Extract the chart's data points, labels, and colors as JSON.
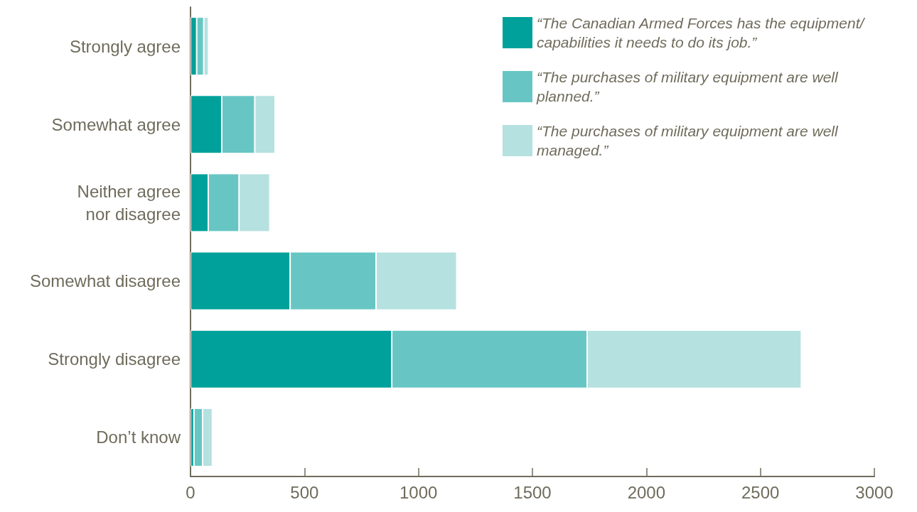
{
  "chart_data": {
    "type": "bar",
    "orientation": "horizontal",
    "stacked": true,
    "categories": [
      "Strongly agree",
      "Somewhat agree",
      "Neither agree\nnor disagree",
      "Somewhat disagree",
      "Strongly disagree",
      "Don’t know"
    ],
    "series": [
      {
        "name": "“The Canadian Armed Forces has the equipment/ capabilities it needs to do its job.”",
        "color": "#00a19a",
        "values": [
          27,
          137,
          78,
          437,
          883,
          15
        ]
      },
      {
        "name": "“The purchases of military equipment are well planned.”",
        "color": "#67c6c3",
        "values": [
          31,
          145,
          135,
          377,
          857,
          38
        ]
      },
      {
        "name": "“The purchases of military equipment are well managed.”",
        "color": "#b5e1e0",
        "values": [
          21,
          89,
          135,
          354,
          940,
          43
        ]
      }
    ],
    "xlim": [
      0,
      3000
    ],
    "xticks": [
      0,
      500,
      1000,
      1500,
      2000,
      2500,
      3000
    ],
    "grid": false,
    "legend": "top right"
  }
}
